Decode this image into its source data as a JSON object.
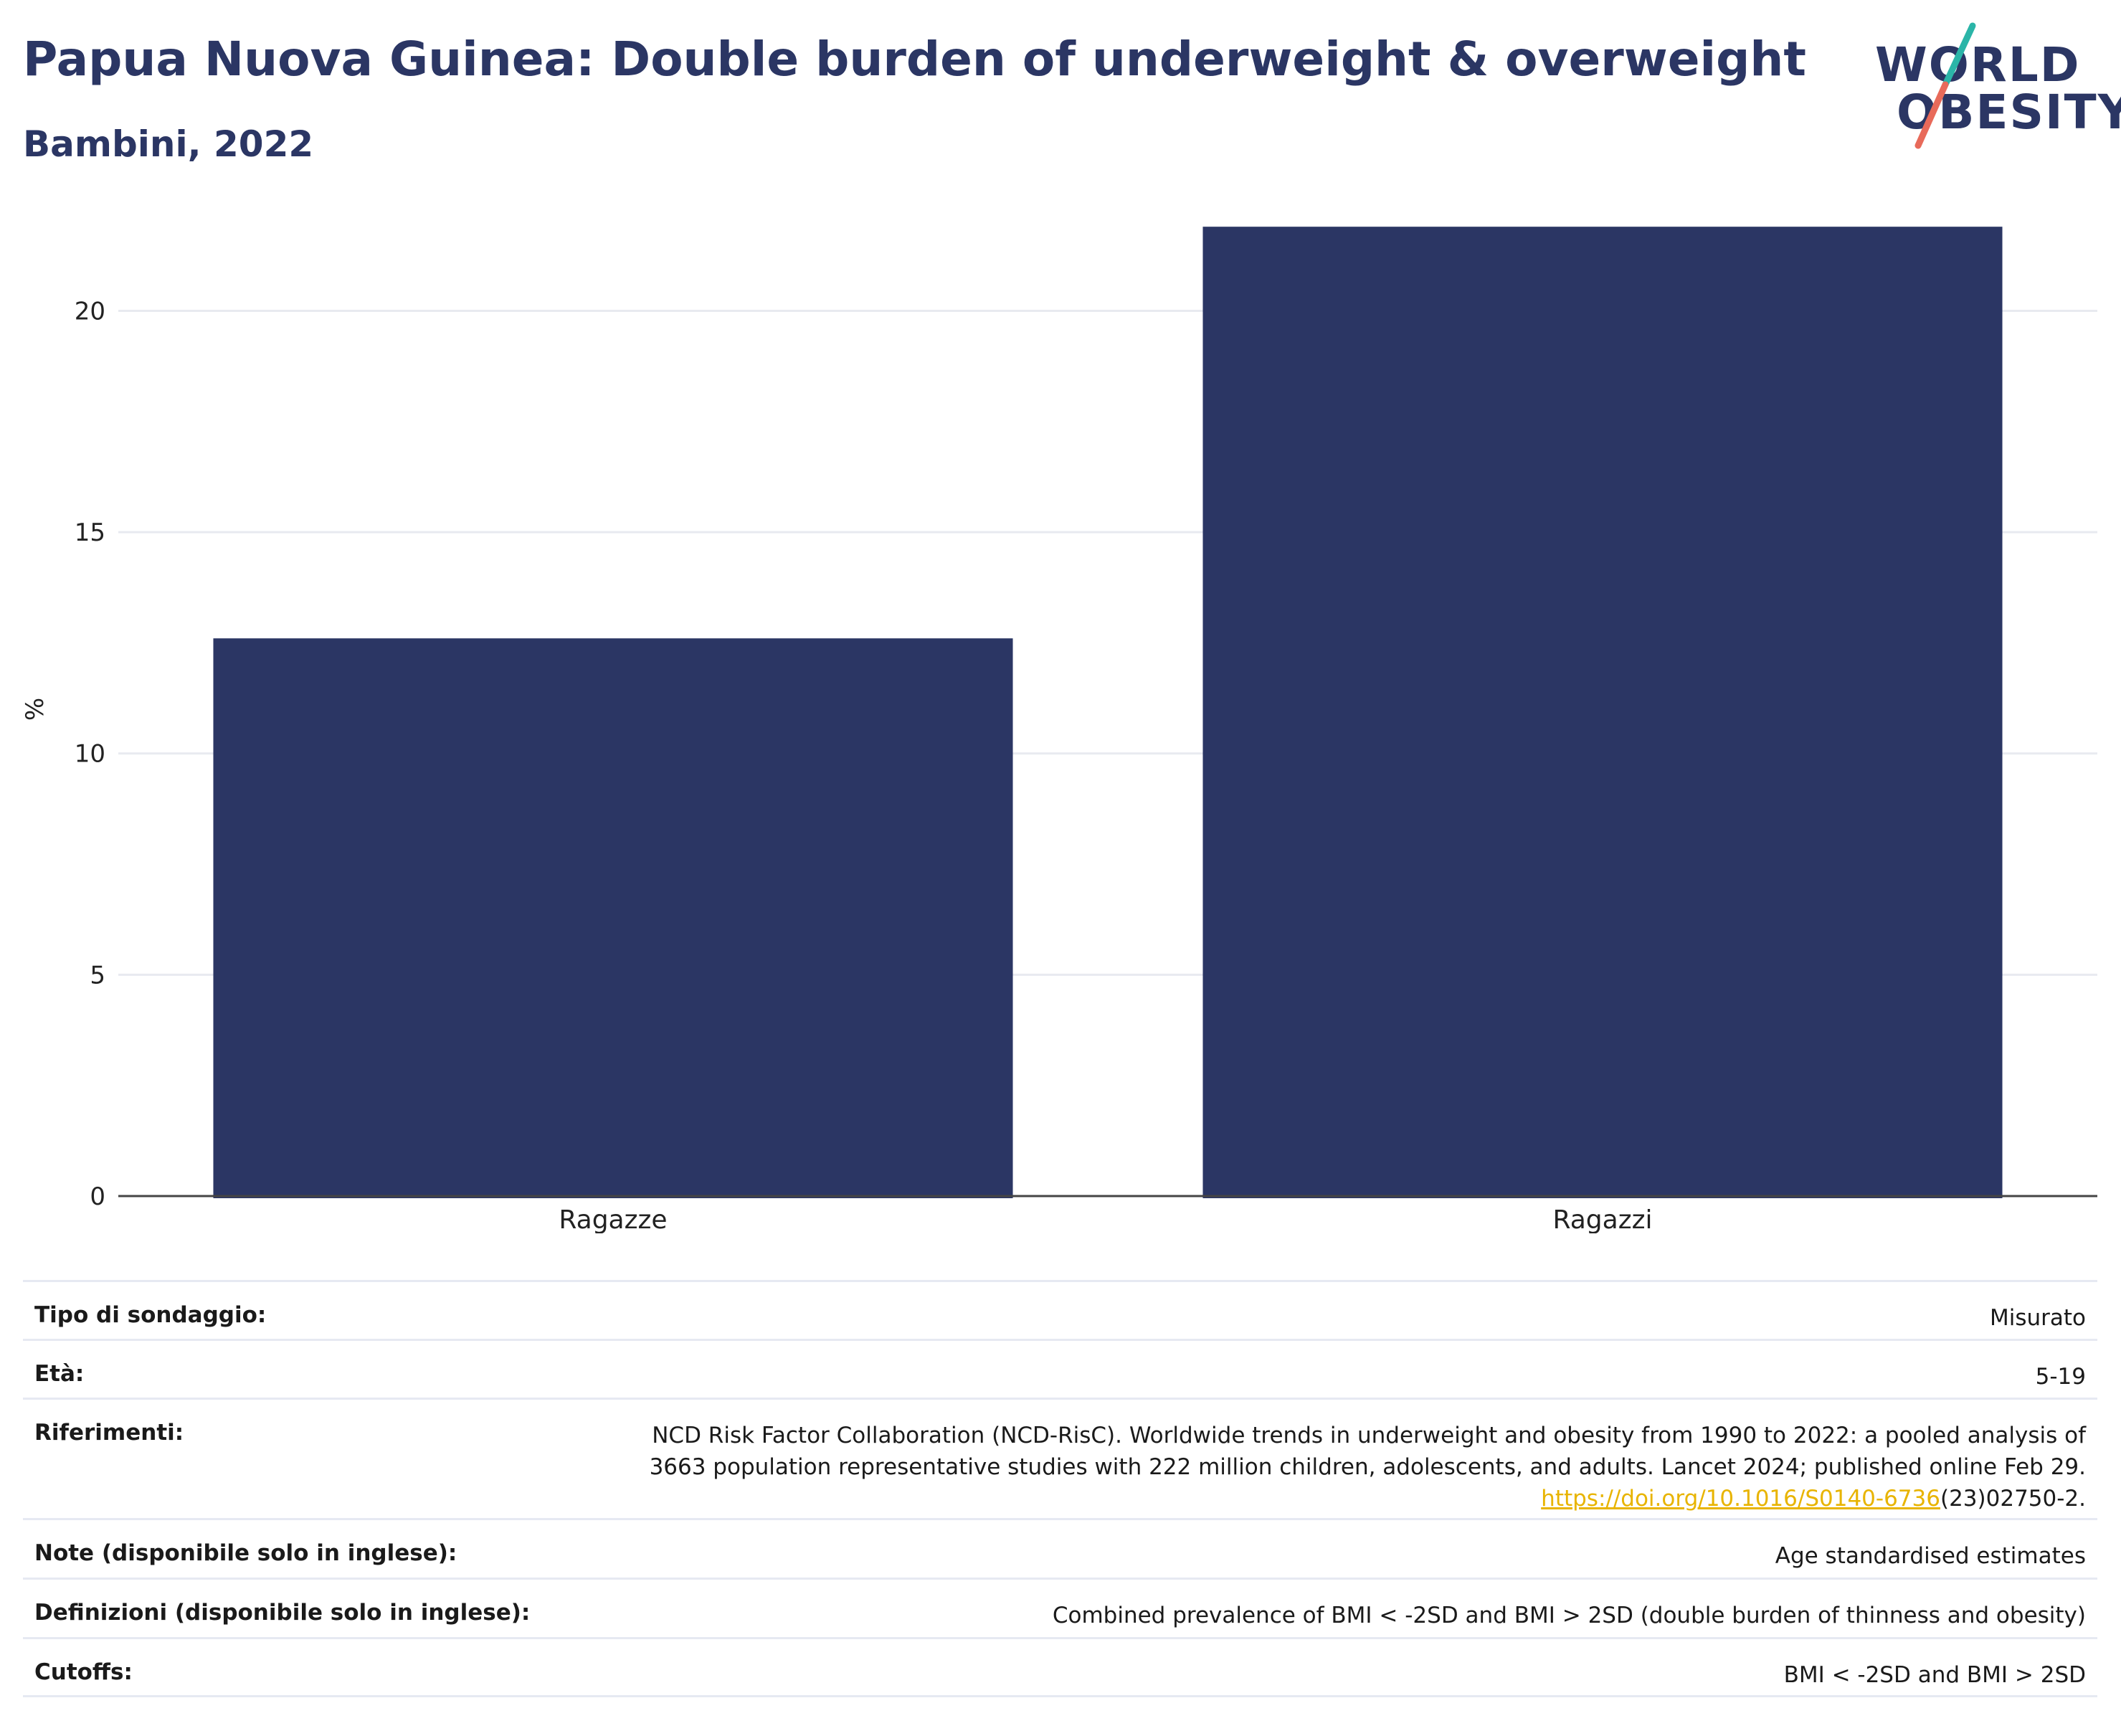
{
  "header": {
    "title": "Papua Nuova Guinea: Double burden of underweight & overweight",
    "subtitle": "Bambini, 2022"
  },
  "logo": {
    "line1": "WORLD",
    "line2": "OBESITY",
    "accent_colors": [
      "#2bb5a8",
      "#e86a5a"
    ]
  },
  "chart_data": {
    "type": "bar",
    "categories": [
      "Ragazze",
      "Ragazzi"
    ],
    "values": [
      12.6,
      21.9
    ],
    "title": "Papua Nuova Guinea: Double burden of underweight & overweight",
    "subtitle": "Bambini, 2022",
    "xlabel": "",
    "ylabel": "%",
    "ylim": [
      0,
      22
    ],
    "yticks": [
      0,
      5,
      10,
      15,
      20
    ],
    "grid": true,
    "bar_color": "#2b3664"
  },
  "details": [
    {
      "key": "Tipo di sondaggio:",
      "value": "Misurato"
    },
    {
      "key": "Età:",
      "value": "5-19"
    },
    {
      "key": "Riferimenti:",
      "value_lines": [
        "NCD Risk Factor Collaboration (NCD-RisC). Worldwide trends in underweight and obesity from 1990 to 2022: a pooled analysis of",
        "3663 population representative studies with 222 million children, adolescents, and adults. Lancet 2024; published online Feb 29."
      ],
      "link": "https://doi.org/10.1016/S0140-6736",
      "link_suffix": "(23)02750-2."
    },
    {
      "key": "Note (disponibile solo in inglese):",
      "value": "Age standardised estimates"
    },
    {
      "key": "Definizioni (disponibile solo in inglese):",
      "value": "Combined prevalence of BMI < -2SD and BMI > 2SD (double burden of thinness and obesity)"
    },
    {
      "key": "Cutoffs:",
      "value": "BMI < -2SD and BMI > 2SD"
    }
  ]
}
